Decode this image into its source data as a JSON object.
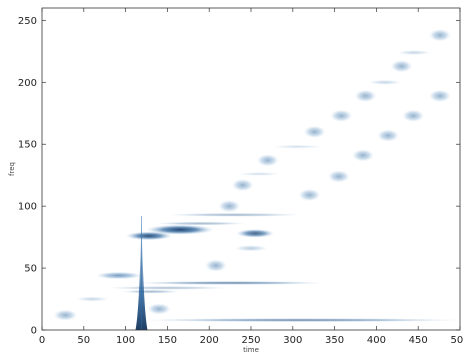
{
  "chart_data": {
    "type": "scatter",
    "title": "",
    "xlabel": "time",
    "ylabel": "freq",
    "xlim": [
      0,
      500
    ],
    "ylim": [
      0,
      260
    ],
    "x_ticks": [
      0,
      50,
      100,
      150,
      200,
      250,
      300,
      350,
      400,
      450,
      500
    ],
    "y_ticks": [
      0,
      50,
      100,
      150,
      200,
      250
    ],
    "x_tick_labels": [
      "0",
      "50",
      "100",
      "150",
      "200",
      "250",
      "300",
      "350",
      "400",
      "450",
      "500"
    ],
    "y_tick_labels": [
      "0",
      "50",
      "100",
      "150",
      "200",
      "250"
    ],
    "grid": false,
    "colormap": "blues",
    "series": [
      {
        "kind": "blobs",
        "points": [
          {
            "x": 28,
            "y": 12,
            "w": 28,
            "h": 9,
            "intensity": 0.45
          },
          {
            "x": 60,
            "y": 25,
            "w": 40,
            "h": 4,
            "intensity": 0.25
          },
          {
            "x": 92,
            "y": 44,
            "w": 55,
            "h": 6,
            "intensity": 0.6
          },
          {
            "x": 140,
            "y": 17,
            "w": 28,
            "h": 9,
            "intensity": 0.45
          },
          {
            "x": 208,
            "y": 52,
            "w": 26,
            "h": 10,
            "intensity": 0.45
          },
          {
            "x": 224,
            "y": 100,
            "w": 26,
            "h": 10,
            "intensity": 0.45
          },
          {
            "x": 240,
            "y": 117,
            "w": 26,
            "h": 10,
            "intensity": 0.45
          },
          {
            "x": 270,
            "y": 137,
            "w": 26,
            "h": 10,
            "intensity": 0.45
          },
          {
            "x": 320,
            "y": 109,
            "w": 26,
            "h": 10,
            "intensity": 0.45
          },
          {
            "x": 326,
            "y": 160,
            "w": 26,
            "h": 10,
            "intensity": 0.45
          },
          {
            "x": 355,
            "y": 124,
            "w": 26,
            "h": 10,
            "intensity": 0.45
          },
          {
            "x": 358,
            "y": 173,
            "w": 26,
            "h": 10,
            "intensity": 0.45
          },
          {
            "x": 384,
            "y": 141,
            "w": 26,
            "h": 10,
            "intensity": 0.45
          },
          {
            "x": 387,
            "y": 189,
            "w": 26,
            "h": 10,
            "intensity": 0.45
          },
          {
            "x": 414,
            "y": 157,
            "w": 26,
            "h": 10,
            "intensity": 0.45
          },
          {
            "x": 430,
            "y": 213,
            "w": 26,
            "h": 10,
            "intensity": 0.45
          },
          {
            "x": 444,
            "y": 173,
            "w": 26,
            "h": 10,
            "intensity": 0.45
          },
          {
            "x": 476,
            "y": 238,
            "w": 26,
            "h": 10,
            "intensity": 0.45
          },
          {
            "x": 476,
            "y": 189,
            "w": 26,
            "h": 10,
            "intensity": 0.45
          },
          {
            "x": 410,
            "y": 200,
            "w": 40,
            "h": 4,
            "intensity": 0.25
          },
          {
            "x": 445,
            "y": 224,
            "w": 40,
            "h": 4,
            "intensity": 0.25
          },
          {
            "x": 305,
            "y": 148,
            "w": 60,
            "h": 3,
            "intensity": 0.2
          },
          {
            "x": 260,
            "y": 126,
            "w": 50,
            "h": 3,
            "intensity": 0.2
          },
          {
            "x": 250,
            "y": 66,
            "w": 40,
            "h": 5,
            "intensity": 0.3
          }
        ]
      },
      {
        "kind": "streaks",
        "points": [
          {
            "x": 128,
            "y": 76,
            "w": 55,
            "h": 7,
            "intensity": 0.85
          },
          {
            "x": 165,
            "y": 81,
            "w": 80,
            "h": 8,
            "intensity": 0.9
          },
          {
            "x": 255,
            "y": 78,
            "w": 45,
            "h": 7,
            "intensity": 0.75
          },
          {
            "x": 230,
            "y": 93,
            "w": 165,
            "h": 3,
            "intensity": 0.35
          },
          {
            "x": 190,
            "y": 86,
            "w": 110,
            "h": 3,
            "intensity": 0.35
          },
          {
            "x": 225,
            "y": 38,
            "w": 230,
            "h": 3,
            "intensity": 0.55
          },
          {
            "x": 150,
            "y": 34,
            "w": 150,
            "h": 3,
            "intensity": 0.3
          },
          {
            "x": 130,
            "y": 31,
            "w": 70,
            "h": 3,
            "intensity": 0.35
          },
          {
            "x": 310,
            "y": 8,
            "w": 390,
            "h": 3,
            "intensity": 0.55
          }
        ]
      },
      {
        "kind": "spike",
        "points": [
          {
            "x": 119,
            "y_bottom": 0,
            "y_top": 92,
            "intensity": 0.9
          }
        ]
      }
    ]
  }
}
